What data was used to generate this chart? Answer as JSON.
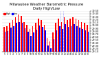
{
  "title": "Milwaukee Weather Barometric Pressure\nDaily High/Low",
  "title_fontsize": 3.8,
  "background_color": "#ffffff",
  "plot_background": "#ffffff",
  "grid_color": "#cccccc",
  "days": [
    1,
    2,
    3,
    4,
    5,
    6,
    7,
    8,
    9,
    10,
    11,
    12,
    13,
    14,
    15,
    16,
    17,
    18,
    19,
    20,
    21,
    22,
    23,
    24,
    25,
    26,
    27,
    28,
    29,
    30
  ],
  "day_labels": [
    "1",
    "2",
    "3",
    "4",
    "5",
    "6",
    "7",
    "8",
    "9",
    "10",
    "11",
    "12",
    "13",
    "14",
    "15",
    "16",
    "17",
    "18",
    "19",
    "20",
    "21",
    "22",
    "23",
    "24",
    "25",
    "26",
    "27",
    "28",
    "29",
    "30"
  ],
  "high_values": [
    29.95,
    29.98,
    30.1,
    30.18,
    30.28,
    30.38,
    30.32,
    30.12,
    30.02,
    29.88,
    29.98,
    30.08,
    30.22,
    30.18,
    30.02,
    29.58,
    29.45,
    29.75,
    30.08,
    30.22,
    30.12,
    30.28,
    30.18,
    30.22,
    30.28,
    30.22,
    30.18,
    30.12,
    30.08,
    30.02
  ],
  "low_values": [
    29.78,
    29.8,
    29.92,
    29.98,
    30.08,
    30.12,
    30.08,
    29.9,
    29.78,
    29.65,
    29.75,
    29.85,
    30.0,
    29.95,
    29.82,
    29.32,
    29.22,
    29.52,
    29.82,
    29.98,
    29.88,
    30.05,
    29.95,
    29.98,
    30.05,
    29.98,
    29.92,
    29.88,
    29.82,
    29.78
  ],
  "high_color": "#ff0000",
  "low_color": "#0000ff",
  "ylim_min": 29.1,
  "ylim_max": 30.5,
  "ytick_min": 29.1,
  "ytick_max": 30.5,
  "ytick_interval": 0.1,
  "legend_high": "High",
  "legend_low": "Low",
  "dashed_vline_positions": [
    20.5,
    21.5
  ],
  "dashed_vline_color": "#aaaaff",
  "num_days": 30
}
